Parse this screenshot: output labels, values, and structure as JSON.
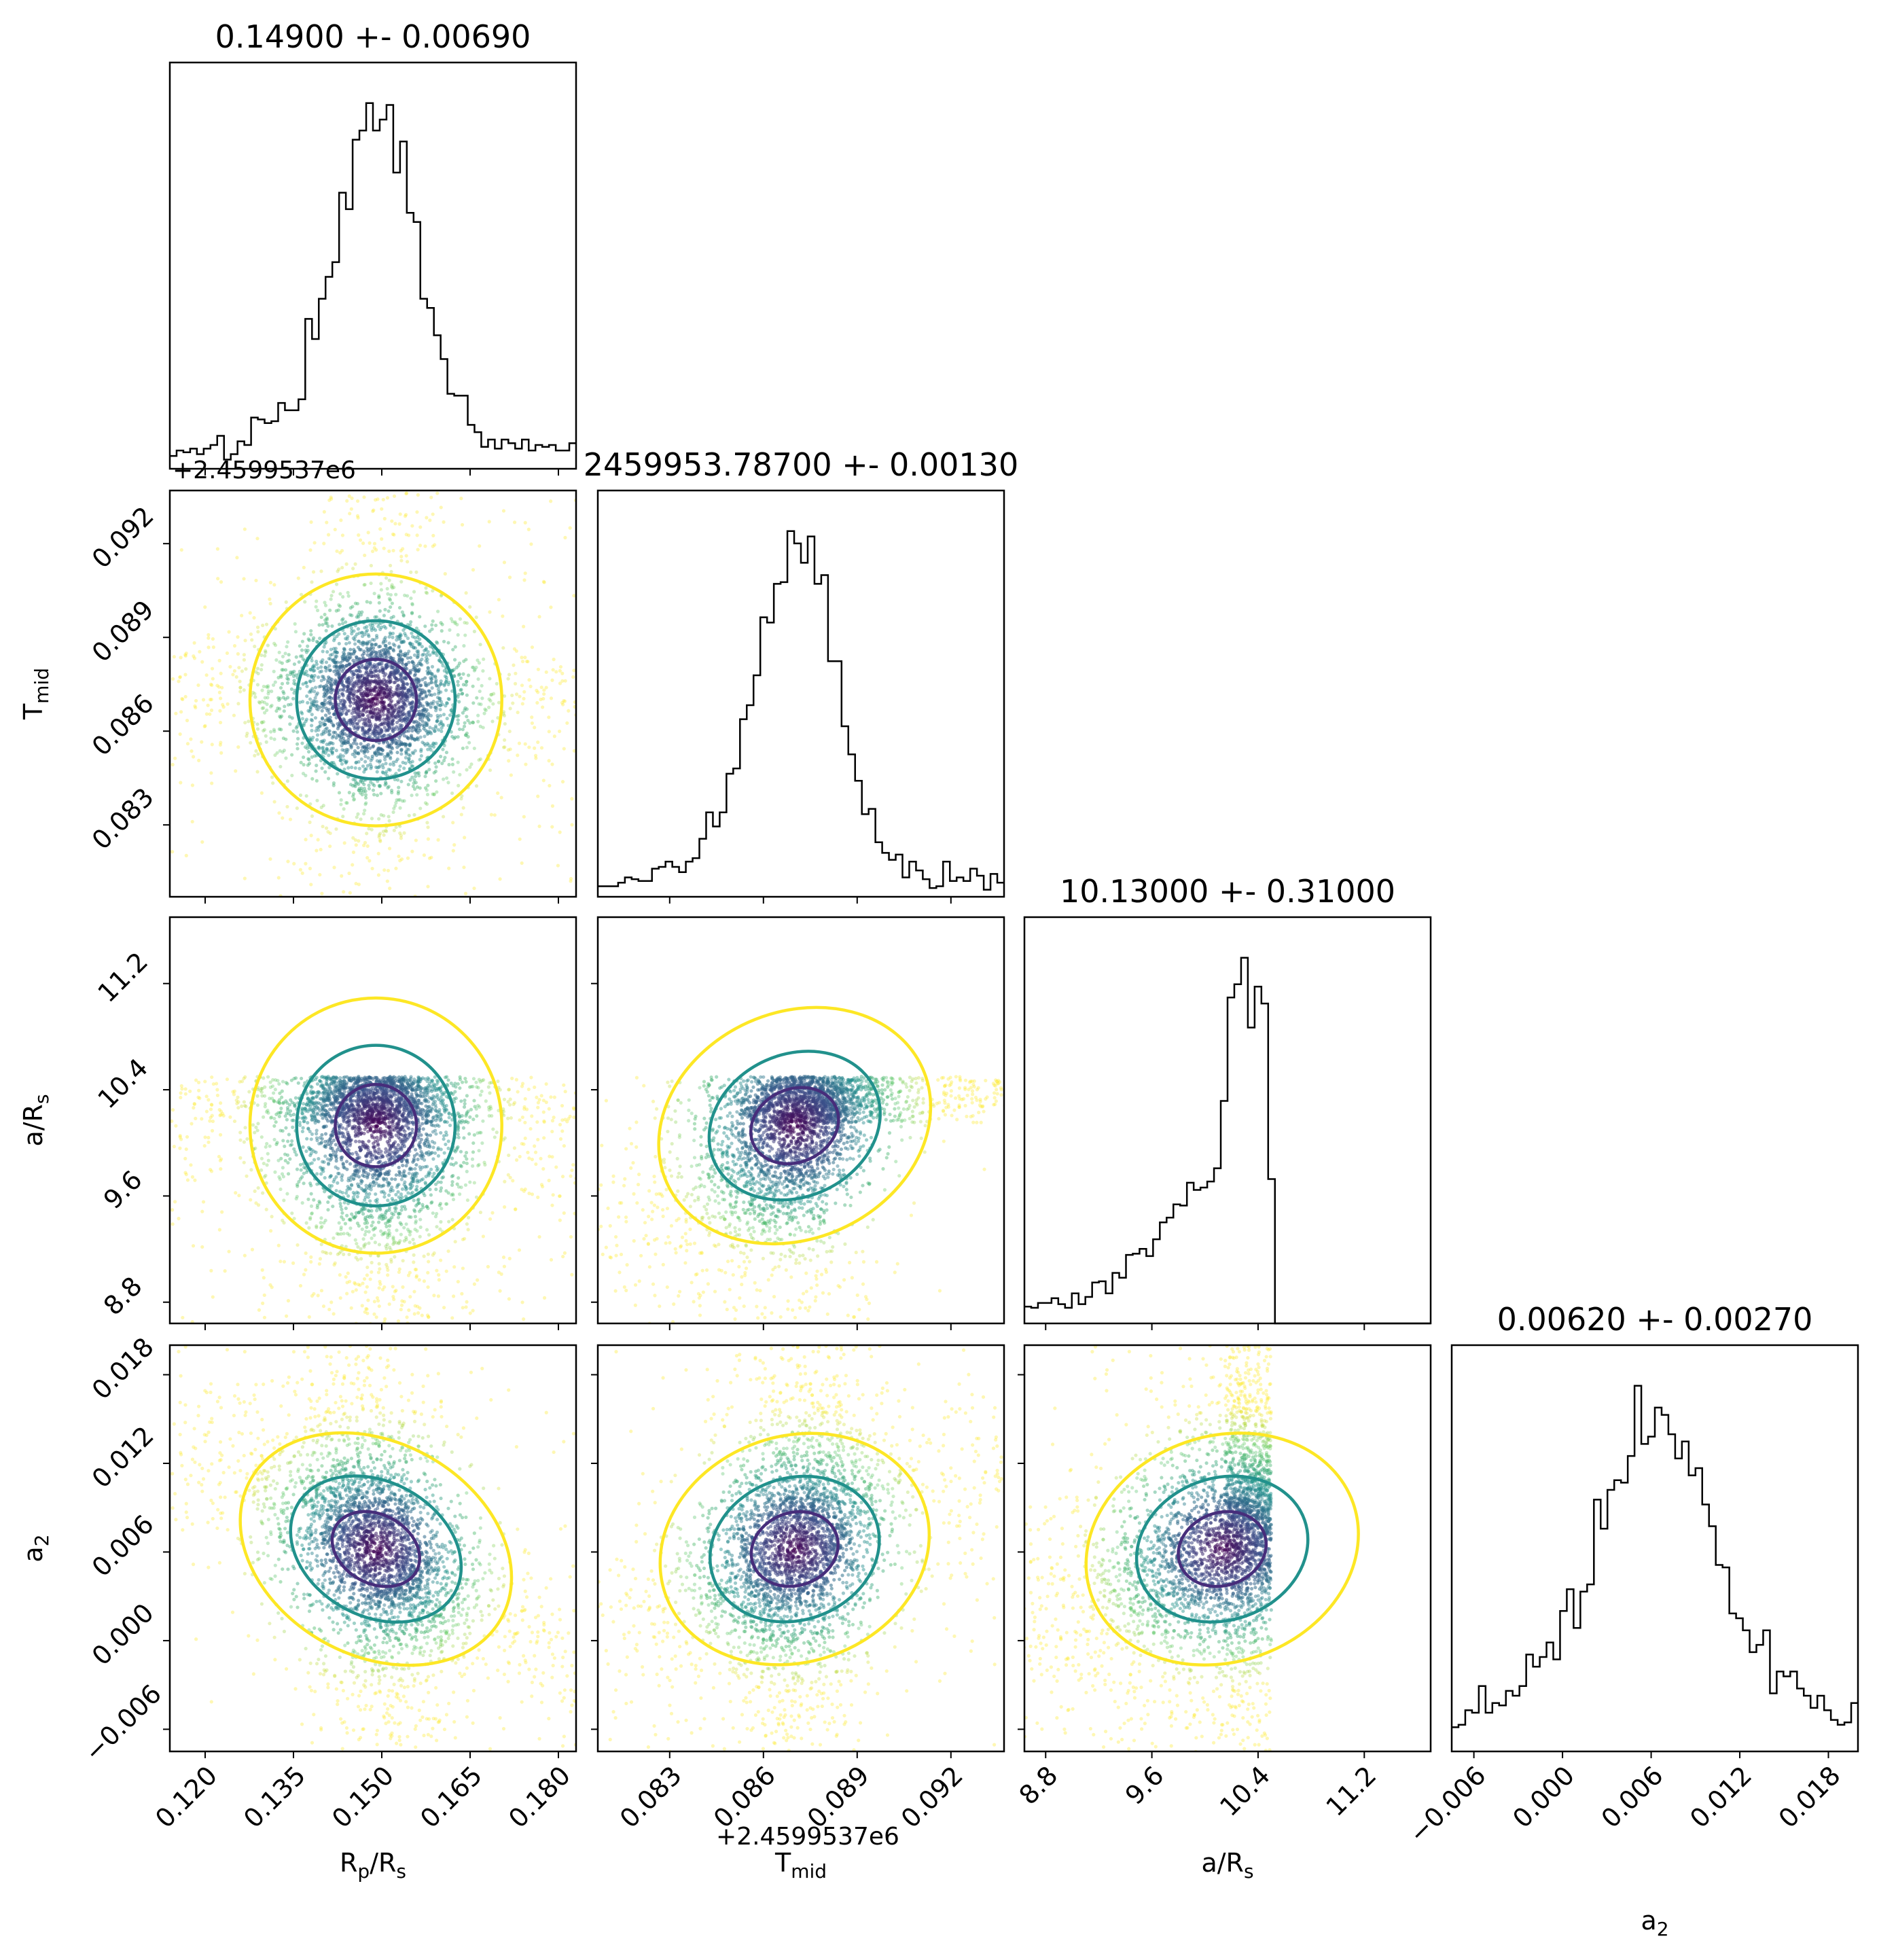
{
  "chart_data": {
    "type": "corner",
    "parameters": [
      {
        "name": "Rp/Rs",
        "label": "R",
        "label_sub": "p",
        "label_tail": "/R",
        "label_sub2": "s",
        "title": "0.14900 +- 0.00690",
        "range": [
          0.114,
          0.183
        ],
        "ticks": [
          0.12,
          0.135,
          0.15,
          0.165,
          0.18
        ],
        "tick_labels": [
          "0.120",
          "0.135",
          "0.150",
          "0.165",
          "0.180"
        ],
        "median": 0.149,
        "sigma": 0.0069
      },
      {
        "name": "Tmid",
        "label": "T",
        "label_sub": "mid",
        "label_tail": "",
        "label_sub2": "",
        "offset": "+2.4599537e6",
        "title": "2459953.78700 +- 0.00130",
        "range": [
          0.0807,
          0.0937
        ],
        "ticks": [
          0.083,
          0.086,
          0.089,
          0.092
        ],
        "tick_labels": [
          "0.083",
          "0.086",
          "0.089",
          "0.092"
        ],
        "median": 0.087,
        "sigma": 0.0013
      },
      {
        "name": "a/Rs",
        "label": "a/R",
        "label_sub": "s",
        "label_tail": "",
        "label_sub2": "",
        "title": "10.13000 +- 0.31000",
        "range": [
          8.64,
          11.7
        ],
        "ticks": [
          8.8,
          9.6,
          10.4,
          11.2
        ],
        "tick_labels": [
          "8.8",
          "9.6",
          "10.4",
          "11.2"
        ],
        "median": 10.13,
        "sigma": 0.31,
        "upper_bound": 10.5
      },
      {
        "name": "a2",
        "label": "a",
        "label_sub": "2",
        "label_tail": "",
        "label_sub2": "",
        "title": "0.00620 +- 0.00270",
        "range": [
          -0.0075,
          0.02
        ],
        "ticks": [
          -0.006,
          0.0,
          0.006,
          0.012,
          0.018
        ],
        "tick_labels": [
          "−0.006",
          "0.000",
          "0.006",
          "0.012",
          "0.018"
        ],
        "median": 0.0062,
        "sigma": 0.0027
      }
    ],
    "correlations": {
      "1-0": 0.0,
      "2-0": 0.0,
      "2-1": 0.45,
      "3-0": -0.55,
      "3-1": 0.35,
      "3-2": 0.35
    },
    "contour_levels_sigma": [
      1,
      2,
      3
    ],
    "colors": {
      "points_colormap": "viridis",
      "contour_inner": "#472d7b",
      "contour_middle": "#21918c",
      "contour_outer": "#fde725",
      "histogram": "#000000"
    }
  }
}
